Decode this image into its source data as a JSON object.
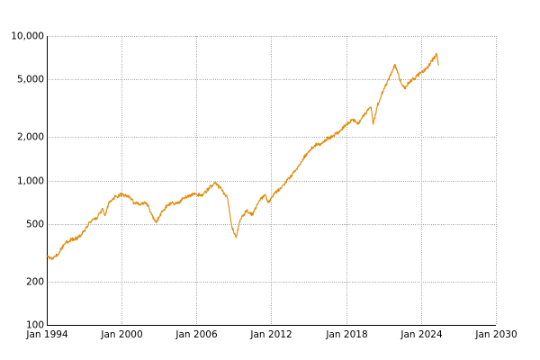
{
  "chart_data": {
    "type": "line",
    "title": "",
    "xlabel": "",
    "ylabel": "",
    "x_scale": "time",
    "y_scale": "log",
    "xlim": [
      "1994-01-01",
      "2030-01-01"
    ],
    "ylim": [
      100,
      10000
    ],
    "grid": true,
    "legend": "none",
    "x_ticks": [
      {
        "date": "1994-01-01",
        "label": "Jan 1994"
      },
      {
        "date": "2000-01-01",
        "label": "Jan 2000"
      },
      {
        "date": "2006-01-01",
        "label": "Jan 2006"
      },
      {
        "date": "2012-01-01",
        "label": "Jan 2012"
      },
      {
        "date": "2018-01-01",
        "label": "Jan 2018"
      },
      {
        "date": "2024-01-01",
        "label": "Jan 2024"
      },
      {
        "date": "2030-01-01",
        "label": "Jan 2030"
      }
    ],
    "y_ticks": [
      {
        "value": 100,
        "label": "100"
      },
      {
        "value": 200,
        "label": "200"
      },
      {
        "value": 500,
        "label": "500"
      },
      {
        "value": 1000,
        "label": "1,000"
      },
      {
        "value": 2000,
        "label": "2,000"
      },
      {
        "value": 5000,
        "label": "5,000"
      },
      {
        "value": 10000,
        "label": "10,000"
      }
    ],
    "series": [
      {
        "color": "#e08a0a",
        "points": [
          [
            "1994-01-01",
            300
          ],
          [
            "1994-07-01",
            285
          ],
          [
            "1995-01-01",
            320
          ],
          [
            "1995-07-01",
            370
          ],
          [
            "1996-01-01",
            390
          ],
          [
            "1996-07-01",
            400
          ],
          [
            "1997-01-01",
            450
          ],
          [
            "1997-07-01",
            520
          ],
          [
            "1998-01-01",
            550
          ],
          [
            "1998-07-01",
            640
          ],
          [
            "1998-09-01",
            570
          ],
          [
            "1999-01-01",
            710
          ],
          [
            "1999-07-01",
            770
          ],
          [
            "2000-01-01",
            800
          ],
          [
            "2000-07-01",
            780
          ],
          [
            "2001-01-01",
            700
          ],
          [
            "2001-07-01",
            680
          ],
          [
            "2002-01-01",
            700
          ],
          [
            "2002-07-01",
            560
          ],
          [
            "2002-10-01",
            510
          ],
          [
            "2003-01-01",
            560
          ],
          [
            "2003-07-01",
            650
          ],
          [
            "2004-01-01",
            700
          ],
          [
            "2004-07-01",
            690
          ],
          [
            "2005-01-01",
            760
          ],
          [
            "2005-07-01",
            790
          ],
          [
            "2006-01-01",
            800
          ],
          [
            "2006-07-01",
            780
          ],
          [
            "2007-01-01",
            890
          ],
          [
            "2007-07-01",
            950
          ],
          [
            "2008-01-01",
            870
          ],
          [
            "2008-07-01",
            750
          ],
          [
            "2008-11-01",
            480
          ],
          [
            "2009-03-01",
            400
          ],
          [
            "2009-07-01",
            530
          ],
          [
            "2010-01-01",
            620
          ],
          [
            "2010-07-01",
            580
          ],
          [
            "2011-01-01",
            720
          ],
          [
            "2011-07-01",
            800
          ],
          [
            "2011-10-01",
            700
          ],
          [
            "2012-01-01",
            760
          ],
          [
            "2012-07-01",
            850
          ],
          [
            "2013-01-01",
            940
          ],
          [
            "2013-07-01",
            1050
          ],
          [
            "2014-01-01",
            1200
          ],
          [
            "2014-07-01",
            1400
          ],
          [
            "2015-01-01",
            1600
          ],
          [
            "2015-07-01",
            1750
          ],
          [
            "2016-01-01",
            1800
          ],
          [
            "2016-07-01",
            1950
          ],
          [
            "2017-01-01",
            2050
          ],
          [
            "2017-07-01",
            2200
          ],
          [
            "2018-01-01",
            2450
          ],
          [
            "2018-07-01",
            2650
          ],
          [
            "2018-12-01",
            2450
          ],
          [
            "2019-07-01",
            2900
          ],
          [
            "2020-01-01",
            3200
          ],
          [
            "2020-03-01",
            2450
          ],
          [
            "2020-07-01",
            3300
          ],
          [
            "2021-01-01",
            4300
          ],
          [
            "2021-07-01",
            5200
          ],
          [
            "2021-12-01",
            6300
          ],
          [
            "2022-06-01",
            4700
          ],
          [
            "2022-10-01",
            4300
          ],
          [
            "2023-01-01",
            4800
          ],
          [
            "2023-07-01",
            5100
          ],
          [
            "2024-01-01",
            5600
          ],
          [
            "2024-07-01",
            6000
          ],
          [
            "2025-01-01",
            7000
          ],
          [
            "2025-04-01",
            7500
          ],
          [
            "2025-06-01",
            6300
          ]
        ]
      }
    ]
  }
}
